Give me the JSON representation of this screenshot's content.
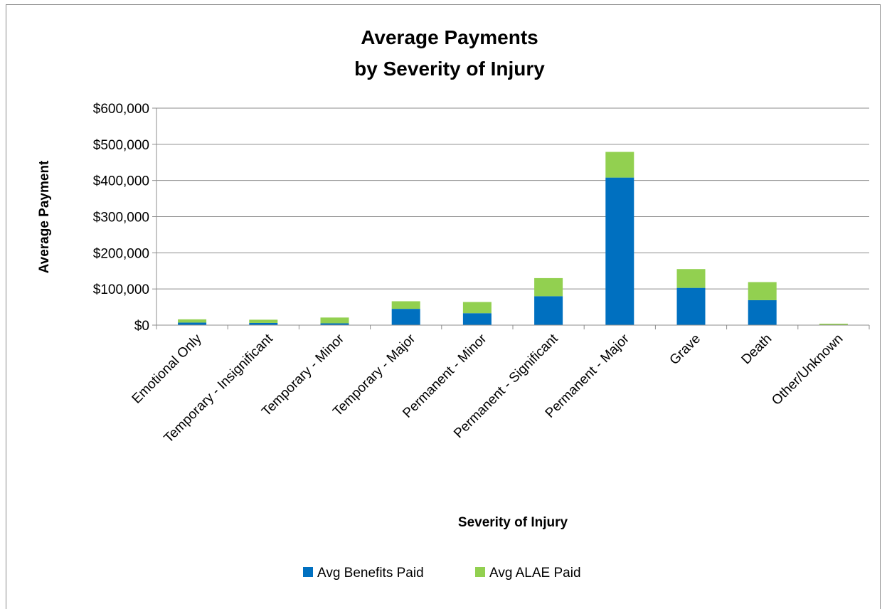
{
  "chart_data": {
    "type": "bar",
    "stacked": true,
    "title": [
      "Average Payments",
      "by Severity of Injury"
    ],
    "xlabel": "Severity of Injury",
    "ylabel": "Average Payment",
    "ylim": [
      0,
      600000
    ],
    "yticks": [
      0,
      100000,
      200000,
      300000,
      400000,
      500000,
      600000
    ],
    "ytick_labels": [
      "$0",
      "$100,000",
      "$200,000",
      "$300,000",
      "$400,000",
      "$500,000",
      "$600,000"
    ],
    "grid": true,
    "legend_position": "bottom",
    "categories": [
      "Emotional Only",
      "Temporary - Insignificant",
      "Temporary - Minor",
      "Temporary - Major",
      "Permanent - Minor",
      "Permanent - Significant",
      "Permanent - Major",
      "Grave",
      "Death",
      "Other/Unknown"
    ],
    "series": [
      {
        "name": "Avg Benefits Paid",
        "color": "#0070c0",
        "values": [
          7000,
          6000,
          5000,
          45000,
          33000,
          80000,
          408000,
          103000,
          69000,
          1000
        ]
      },
      {
        "name": "Avg ALAE Paid",
        "color": "#92d050",
        "values": [
          9000,
          9000,
          16000,
          21000,
          31000,
          50000,
          71000,
          52000,
          50000,
          3000
        ]
      }
    ]
  }
}
